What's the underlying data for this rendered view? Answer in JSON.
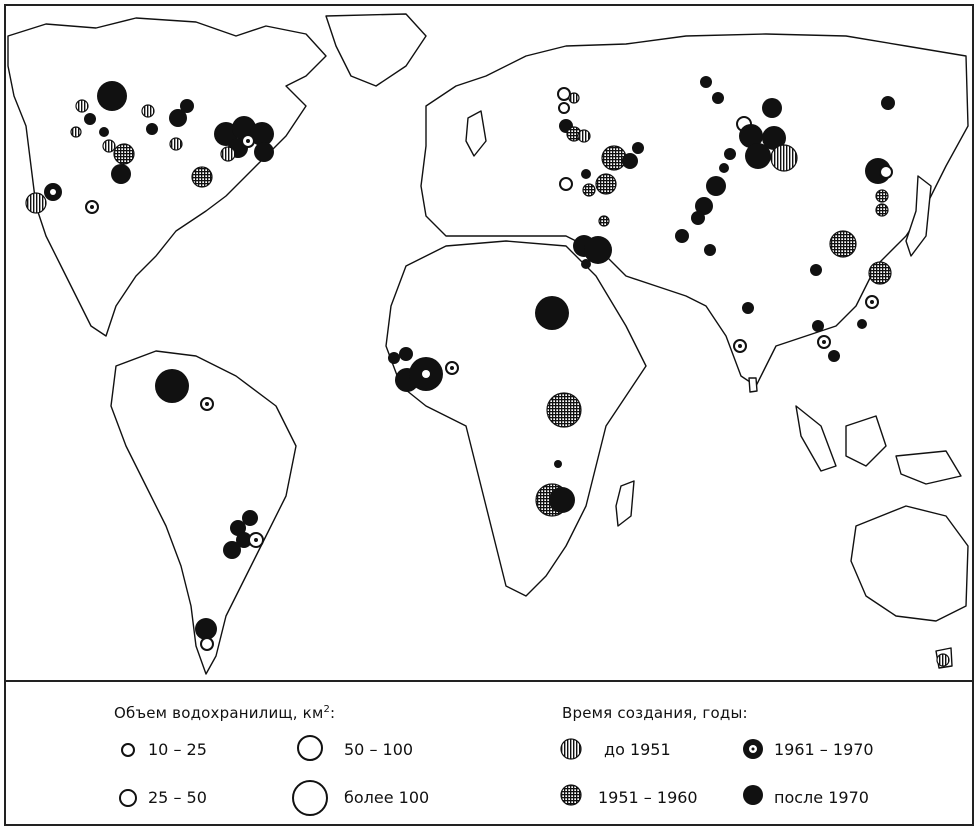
{
  "legend": {
    "volume_title": "Объем водохранилищ, км",
    "volume_title_sup": "2",
    "volume_title_end": ":",
    "volume_classes": [
      {
        "label": "10 – 25"
      },
      {
        "label": "25 – 50"
      },
      {
        "label": "50 – 100"
      },
      {
        "label": "более 100"
      }
    ],
    "period_title": "Время создания, годы:",
    "period_classes": [
      {
        "label": "до 1951",
        "pattern": "vertical-hatch"
      },
      {
        "label": "1951 – 1960",
        "pattern": "cross-hatch"
      },
      {
        "label": "1961 – 1970",
        "pattern": "ring-dot"
      },
      {
        "label": "после 1970",
        "pattern": "solid-black"
      }
    ]
  },
  "reservoirs_by_period": {
    "до 1951": 12,
    "1951 – 1960": 16,
    "1961 – 1970": 24,
    "после 1970": 60
  },
  "colors": {
    "ink": "#111111",
    "paper": "#ffffff"
  }
}
